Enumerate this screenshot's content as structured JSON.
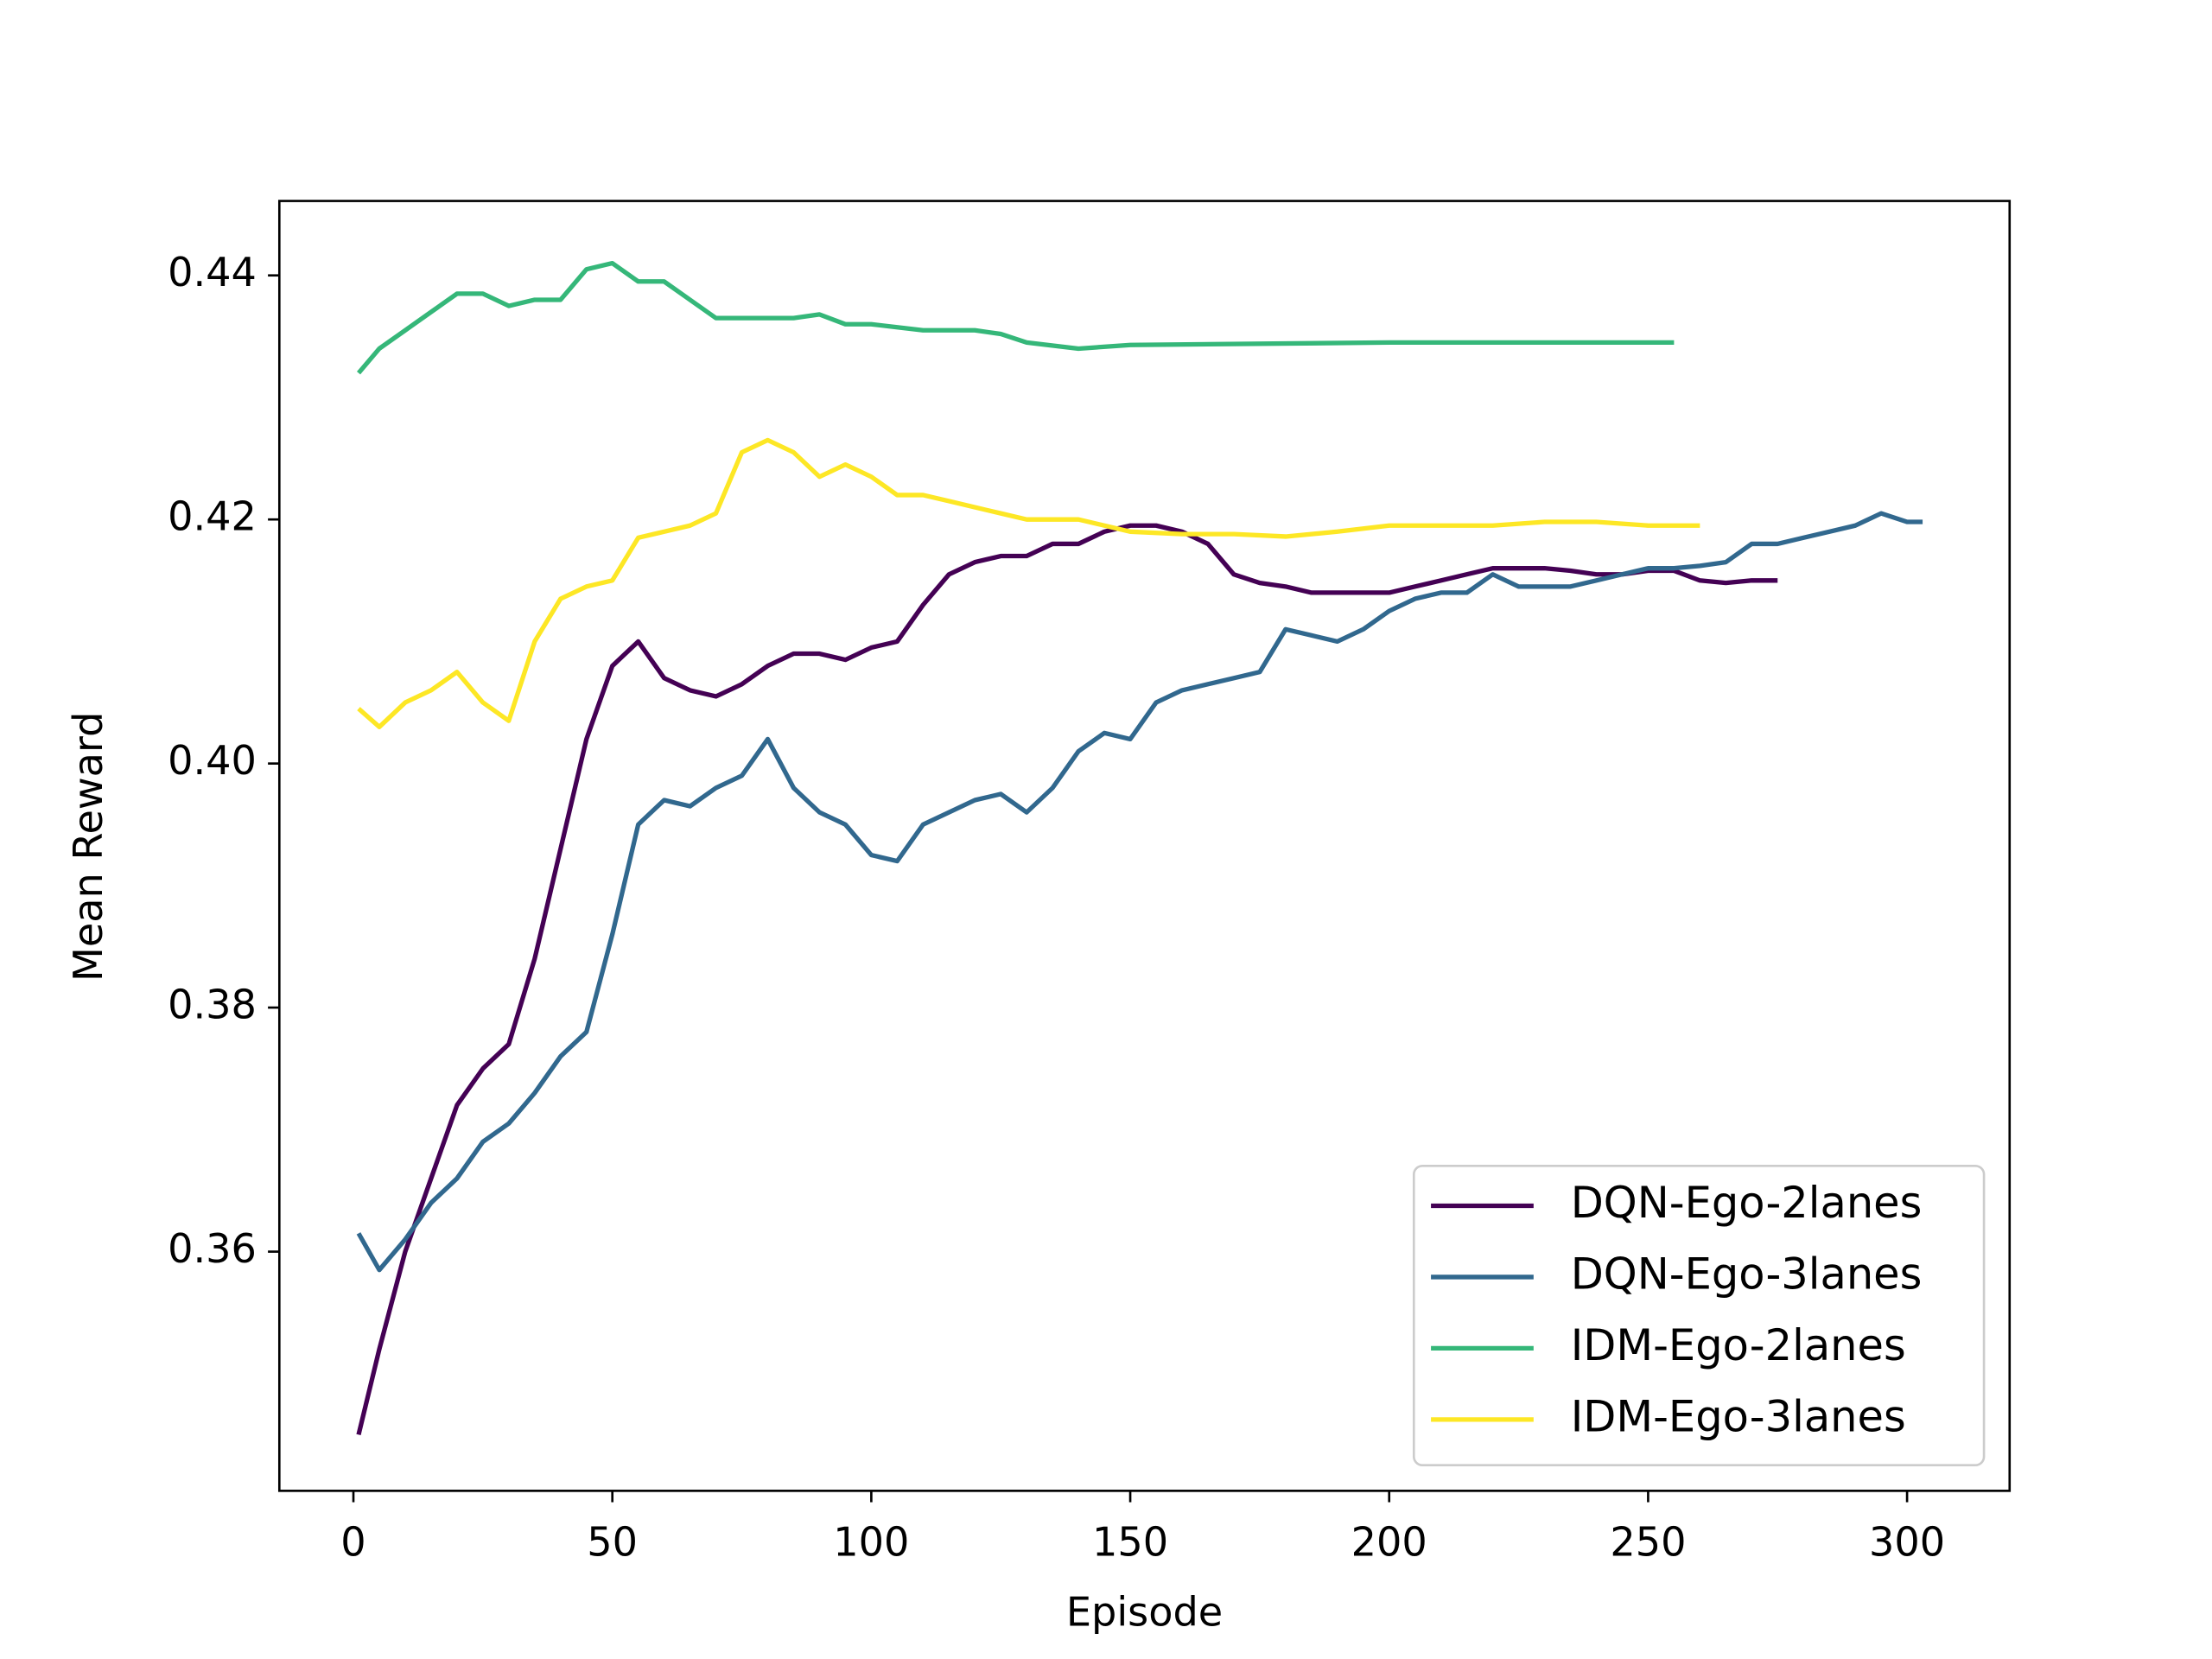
{
  "chart_data": {
    "type": "line",
    "xlabel": "Episode",
    "ylabel": "Mean Reward",
    "xlim": [
      -14.3,
      319.8
    ],
    "ylim": [
      0.3404,
      0.4461
    ],
    "xticks": [
      0,
      50,
      100,
      150,
      200,
      250,
      300
    ],
    "yticks": [
      0.36,
      0.38,
      {
        "value": 0.4,
        "label": "0.40"
      },
      0.42,
      0.44
    ],
    "legend": "lower right",
    "series": [
      {
        "name": "DQN-Ego-2lanes",
        "color": "#440154",
        "x": [
          1,
          5,
          10,
          15,
          20,
          25,
          30,
          35,
          40,
          45,
          50,
          55,
          60,
          65,
          70,
          75,
          80,
          85,
          90,
          95,
          100,
          105,
          110,
          115,
          120,
          125,
          130,
          135,
          140,
          145,
          150,
          155,
          160,
          165,
          170,
          175,
          180,
          185,
          190,
          195,
          200,
          205,
          210,
          215,
          220,
          225,
          230,
          235,
          240,
          245,
          250,
          255,
          260,
          265,
          270,
          275
        ],
        "values": [
          0.345,
          0.352,
          0.36,
          0.366,
          0.372,
          0.375,
          0.377,
          0.384,
          0.393,
          0.402,
          0.408,
          0.41,
          0.407,
          0.406,
          0.4055,
          0.4065,
          0.408,
          0.409,
          0.409,
          0.4085,
          0.4095,
          0.41,
          0.413,
          0.4155,
          0.4165,
          0.417,
          0.417,
          0.418,
          0.418,
          0.419,
          0.4195,
          0.4195,
          0.419,
          0.418,
          0.4155,
          0.4148,
          0.4145,
          0.414,
          0.414,
          0.414,
          0.414,
          0.4145,
          0.415,
          0.4155,
          0.416,
          0.416,
          0.416,
          0.4158,
          0.4155,
          0.4155,
          0.4158,
          0.4158,
          0.415,
          0.4148,
          0.415,
          0.415
        ]
      },
      {
        "name": "DQN-Ego-3lanes",
        "color": "#31688e",
        "x": [
          1,
          5,
          10,
          15,
          20,
          25,
          30,
          35,
          40,
          45,
          50,
          55,
          60,
          65,
          70,
          75,
          80,
          85,
          90,
          95,
          100,
          105,
          110,
          115,
          120,
          125,
          130,
          135,
          140,
          145,
          150,
          155,
          160,
          165,
          170,
          175,
          180,
          185,
          190,
          195,
          200,
          205,
          210,
          215,
          220,
          225,
          230,
          235,
          240,
          245,
          250,
          255,
          260,
          265,
          270,
          275,
          280,
          285,
          290,
          295,
          300,
          303
        ],
        "values": [
          0.3615,
          0.3585,
          0.361,
          0.364,
          0.366,
          0.369,
          0.3705,
          0.373,
          0.376,
          0.378,
          0.386,
          0.395,
          0.397,
          0.3965,
          0.398,
          0.399,
          0.402,
          0.398,
          0.396,
          0.395,
          0.3925,
          0.392,
          0.395,
          0.396,
          0.397,
          0.3975,
          0.396,
          0.398,
          0.401,
          0.4025,
          0.402,
          0.405,
          0.406,
          0.4065,
          0.407,
          0.4075,
          0.411,
          0.4105,
          0.41,
          0.411,
          0.4125,
          0.4135,
          0.414,
          0.414,
          0.4155,
          0.4145,
          0.4145,
          0.4145,
          0.415,
          0.4155,
          0.416,
          0.416,
          0.4162,
          0.4165,
          0.418,
          0.418,
          0.4185,
          0.419,
          0.4195,
          0.4205,
          0.4198,
          0.4198
        ]
      },
      {
        "name": "IDM-Ego-2lanes",
        "color": "#35b779",
        "x": [
          1,
          5,
          10,
          15,
          20,
          25,
          30,
          35,
          40,
          45,
          50,
          55,
          60,
          65,
          70,
          75,
          80,
          85,
          90,
          95,
          100,
          110,
          120,
          125,
          130,
          140,
          150,
          200,
          255
        ],
        "values": [
          0.432,
          0.434,
          0.4355,
          0.437,
          0.4385,
          0.4385,
          0.4375,
          0.438,
          0.438,
          0.4405,
          0.441,
          0.4395,
          0.4395,
          0.438,
          0.4365,
          0.4365,
          0.4365,
          0.4365,
          0.4368,
          0.436,
          0.436,
          0.4355,
          0.4355,
          0.4352,
          0.4345,
          0.434,
          0.4343,
          0.4345,
          0.4345
        ]
      },
      {
        "name": "IDM-Ego-3lanes",
        "color": "#fde725",
        "x": [
          1,
          5,
          10,
          15,
          20,
          25,
          30,
          35,
          40,
          45,
          50,
          55,
          60,
          65,
          70,
          75,
          80,
          85,
          90,
          95,
          100,
          105,
          110,
          115,
          120,
          125,
          130,
          140,
          150,
          160,
          170,
          180,
          190,
          200,
          210,
          220,
          230,
          240,
          250,
          260
        ],
        "values": [
          0.4045,
          0.403,
          0.405,
          0.406,
          0.4075,
          0.405,
          0.4035,
          0.41,
          0.4135,
          0.4145,
          0.415,
          0.4185,
          0.419,
          0.4195,
          0.4205,
          0.4255,
          0.4265,
          0.4255,
          0.4235,
          0.4245,
          0.4235,
          0.422,
          0.422,
          0.4215,
          0.421,
          0.4205,
          0.42,
          0.42,
          0.419,
          0.4188,
          0.4188,
          0.4186,
          0.419,
          0.4195,
          0.4195,
          0.4195,
          0.4198,
          0.4198,
          0.4195,
          0.4195
        ]
      }
    ]
  }
}
